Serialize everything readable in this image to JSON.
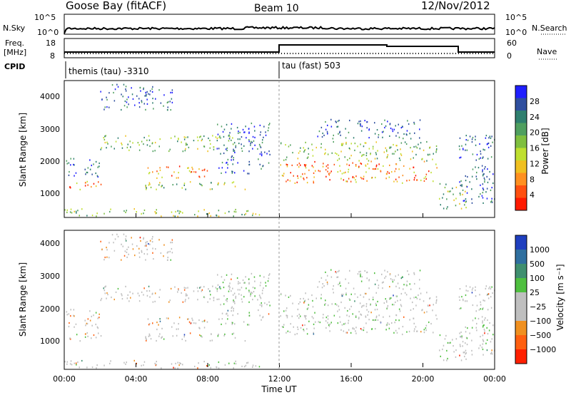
{
  "header": {
    "station": "Goose Bay (fitACF)",
    "beam": "Beam 10",
    "date": "12/Nov/2012"
  },
  "summary": {
    "nsky_label": "N.Sky",
    "nsky_ticks": [
      "10^5",
      "10^0"
    ],
    "nsearch_label": "N.Search",
    "nsearch_ticks": [
      "10^5",
      "10^0"
    ],
    "freq_label": "Freq.",
    "freq_unit": "[MHz]",
    "freq_ticks": [
      "18",
      "8"
    ],
    "nave_label": "Nave",
    "nave_ticks": [
      "60",
      "0"
    ],
    "cpid_label": "CPID",
    "cpid_segments": [
      {
        "label": "themis (tau) -3310",
        "start_hour": 0
      },
      {
        "label": "tau (fast) 503",
        "start_hour": 12
      }
    ]
  },
  "chart_data": [
    {
      "type": "heatmap",
      "panel": "power",
      "ylabel": "Slant Range [km]",
      "ylim": [
        200,
        4500
      ],
      "yticks": [
        "4000",
        "3000",
        "2000",
        "1000"
      ],
      "xlim_hours": [
        0,
        24
      ],
      "colorbar": {
        "label": "Power [dB]",
        "ticks": [
          "28",
          "24",
          "20",
          "16",
          "12",
          "8",
          "4"
        ],
        "colors": [
          "#1f1fff",
          "#2f4f9f",
          "#2f7f6f",
          "#4f9f5f",
          "#7fbf3f",
          "#bfdf2f",
          "#f0c020",
          "#ff9020",
          "#ff5010",
          "#ff1a00"
        ]
      }
    },
    {
      "type": "heatmap",
      "panel": "velocity",
      "ylabel": "Slant Range [km]",
      "ylim": [
        200,
        4500
      ],
      "yticks": [
        "4000",
        "3000",
        "2000",
        "1000"
      ],
      "xlim_hours": [
        0,
        24
      ],
      "colorbar": {
        "label": "Velocity [m s⁻¹]",
        "ticks": [
          "1000",
          "500",
          "100",
          "25",
          "−25",
          "−100",
          "−500",
          "−1000"
        ],
        "colors": [
          "#1f3fbf",
          "#2f6f9f",
          "#3f8f6f",
          "#4fbf3f",
          "#bfbfbf",
          "#bfbfbf",
          "#f09020",
          "#ff6010",
          "#ff2000"
        ]
      }
    }
  ],
  "xaxis": {
    "label": "Time UT",
    "ticks": [
      "00:00",
      "04:00",
      "08:00",
      "12:00",
      "16:00",
      "20:00",
      "00:00"
    ]
  }
}
